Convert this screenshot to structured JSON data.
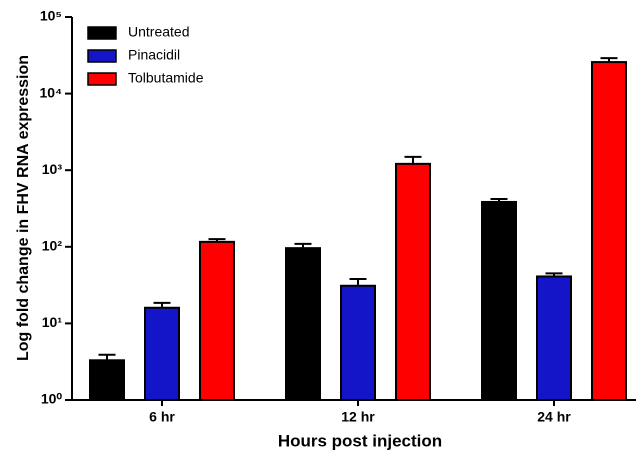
{
  "chart_data": {
    "type": "bar",
    "x_label": "Hours post injection",
    "y_label": "Log fold change in FHV RNA expression",
    "categories": [
      "6 hr",
      "12 hr",
      "24 hr"
    ],
    "series": [
      {
        "name": "Untreated",
        "color": "#000000",
        "values": [
          3.3,
          96,
          385
        ],
        "errors": [
          0.6,
          13,
          35
        ]
      },
      {
        "name": "Pinacidil",
        "color": "#1414c8",
        "values": [
          16,
          31,
          41
        ],
        "errors": [
          2.5,
          7,
          4
        ]
      },
      {
        "name": "Tolbutamide",
        "color": "#ff0000",
        "values": [
          116,
          1210,
          25800
        ],
        "errors": [
          10,
          280,
          3200
        ]
      }
    ],
    "yscale": "log",
    "ylim": [
      1,
      100000
    ],
    "yticks": [
      {
        "value": 1,
        "label": "10⁰"
      },
      {
        "value": 10,
        "label": "10¹"
      },
      {
        "value": 100,
        "label": "10²"
      },
      {
        "value": 1000,
        "label": "10³"
      },
      {
        "value": 10000,
        "label": "10⁴"
      },
      {
        "value": 100000,
        "label": "10⁵"
      }
    ],
    "legend": "upper left"
  }
}
